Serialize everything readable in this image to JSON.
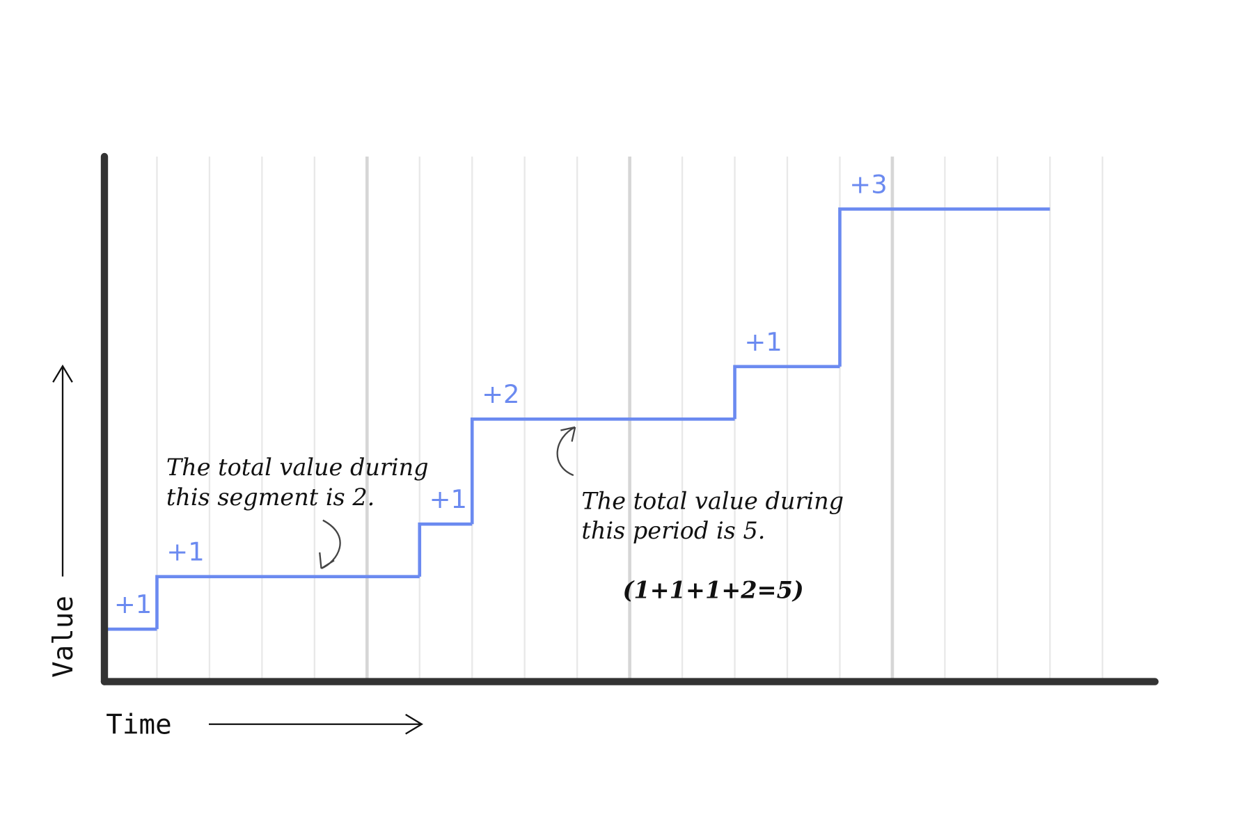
{
  "chart_data": {
    "type": "step",
    "x": [
      0,
      1,
      6,
      7,
      12,
      14
    ],
    "x_end": 18,
    "values": [
      1,
      1,
      1,
      2,
      1,
      3
    ],
    "value_labels": [
      "+1",
      "+1",
      "+1",
      "+2",
      "+1",
      "+3"
    ],
    "color": "#6b8af0",
    "xlim": [
      0,
      20
    ],
    "ylim": [
      0,
      10
    ],
    "xticks": [
      1,
      2,
      3,
      4,
      5,
      6,
      7,
      8,
      9,
      10,
      11,
      12,
      13,
      14,
      15,
      16,
      17,
      18,
      19
    ],
    "xticks_major": [
      5,
      10,
      15
    ],
    "grid": true,
    "xlabel": "Time",
    "ylabel": "Value",
    "annotations": [
      [
        "The total value during",
        "this segment is 2."
      ],
      [
        "The total value during",
        "this period is 5."
      ],
      [
        "(1+1+1+2=5)"
      ]
    ]
  }
}
